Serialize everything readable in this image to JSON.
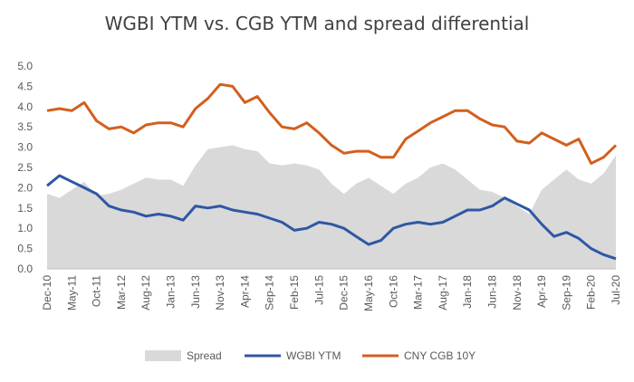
{
  "chart_data": {
    "type": "line",
    "title": "WGBI YTM vs. CGB YTM and spread differential",
    "xlabel": "",
    "ylabel": "",
    "ylim": [
      0,
      5
    ],
    "yticks": [
      "0.0",
      "0.5",
      "1.0",
      "1.5",
      "2.0",
      "2.5",
      "3.0",
      "3.5",
      "4.0",
      "4.5",
      "5.0"
    ],
    "x": [
      "Dec-10",
      "Mar-11",
      "May-11",
      "Aug-11",
      "Oct-11",
      "Jan-12",
      "Mar-12",
      "Jun-12",
      "Aug-12",
      "Nov-12",
      "Jan-13",
      "Apr-13",
      "Jun-13",
      "Sep-13",
      "Nov-13",
      "Feb-14",
      "Apr-14",
      "Jul-14",
      "Sep-14",
      "Dec-14",
      "Feb-15",
      "May-15",
      "Jul-15",
      "Oct-15",
      "Dec-15",
      "Mar-16",
      "May-16",
      "Aug-16",
      "Oct-16",
      "Jan-17",
      "Mar-17",
      "Jun-17",
      "Aug-17",
      "Nov-17",
      "Jan-18",
      "Apr-18",
      "Jun-18",
      "Sep-18",
      "Nov-18",
      "Feb-19",
      "Apr-19",
      "Jul-19",
      "Sep-19",
      "Dec-19",
      "Feb-20",
      "May-20",
      "Jul-20"
    ],
    "xtick_labels": [
      "Dec-10",
      "May-11",
      "Oct-11",
      "Mar-12",
      "Aug-12",
      "Jan-13",
      "Jun-13",
      "Nov-13",
      "Apr-14",
      "Sep-14",
      "Feb-15",
      "Jul-15",
      "Dec-15",
      "May-16",
      "Oct-16",
      "Mar-17",
      "Aug-17",
      "Jan-18",
      "Jun-18",
      "Nov-18",
      "Apr-19",
      "Sep-19",
      "Feb-20",
      "Jul-20"
    ],
    "series": [
      {
        "name": "Spread",
        "kind": "area",
        "color": "#d9d9d9",
        "values": [
          1.85,
          1.75,
          1.95,
          2.15,
          1.8,
          1.85,
          1.95,
          2.1,
          2.25,
          2.2,
          2.2,
          2.05,
          2.55,
          2.95,
          3.0,
          3.05,
          2.95,
          2.9,
          2.6,
          2.55,
          2.6,
          2.55,
          2.45,
          2.1,
          1.85,
          2.1,
          2.25,
          2.05,
          1.85,
          2.1,
          2.25,
          2.5,
          2.6,
          2.45,
          2.2,
          1.95,
          1.9,
          1.75,
          1.55,
          1.35,
          1.95,
          2.2,
          2.45,
          2.2,
          2.1,
          2.35,
          2.8
        ]
      },
      {
        "name": "WGBI YTM",
        "kind": "line",
        "color": "#2f57a4",
        "values": [
          2.05,
          2.3,
          2.15,
          2.0,
          1.85,
          1.55,
          1.45,
          1.4,
          1.3,
          1.35,
          1.3,
          1.2,
          1.55,
          1.5,
          1.55,
          1.45,
          1.4,
          1.35,
          1.25,
          1.15,
          0.95,
          1.0,
          1.15,
          1.1,
          1.0,
          0.8,
          0.6,
          0.7,
          1.0,
          1.1,
          1.15,
          1.1,
          1.15,
          1.3,
          1.45,
          1.45,
          1.55,
          1.75,
          1.6,
          1.45,
          1.1,
          0.8,
          0.9,
          0.75,
          0.5,
          0.35,
          0.25
        ]
      },
      {
        "name": "CNY CGB 10Y",
        "kind": "line",
        "color": "#d35f1e",
        "values": [
          3.9,
          3.95,
          3.9,
          4.1,
          3.65,
          3.45,
          3.5,
          3.35,
          3.55,
          3.6,
          3.6,
          3.5,
          3.95,
          4.2,
          4.55,
          4.5,
          4.1,
          4.25,
          3.85,
          3.5,
          3.45,
          3.6,
          3.35,
          3.05,
          2.85,
          2.9,
          2.9,
          2.75,
          2.75,
          3.2,
          3.4,
          3.6,
          3.75,
          3.9,
          3.9,
          3.7,
          3.55,
          3.5,
          3.15,
          3.1,
          3.35,
          3.2,
          3.05,
          3.2,
          2.6,
          2.75,
          3.05
        ]
      }
    ],
    "legend": "bottom",
    "grid": false
  }
}
